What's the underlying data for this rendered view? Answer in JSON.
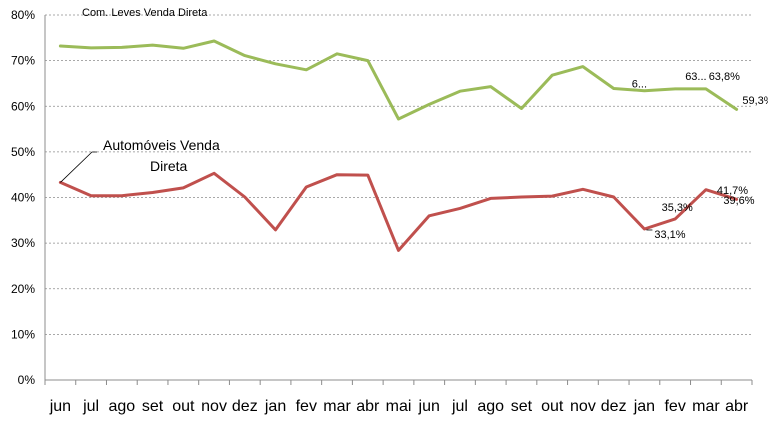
{
  "chart_data": {
    "type": "line",
    "title": "",
    "xlabel": "",
    "ylabel": "",
    "ylim": [
      0,
      80
    ],
    "y_ticks": [
      "0%",
      "10%",
      "20%",
      "30%",
      "40%",
      "50%",
      "60%",
      "70%",
      "80%"
    ],
    "grid": true,
    "categories": [
      "jun",
      "jul",
      "ago",
      "set",
      "out",
      "nov",
      "dez",
      "jan",
      "fev",
      "mar",
      "abr",
      "mai",
      "jun",
      "jul",
      "ago",
      "set",
      "out",
      "nov",
      "dez",
      "jan",
      "fev",
      "mar",
      "abr"
    ],
    "series": [
      {
        "name": "Com. Leves Venda Direta",
        "color": "#9bbb59",
        "values": [
          73.2,
          72.8,
          72.9,
          73.4,
          72.7,
          74.3,
          71.1,
          69.3,
          68.0,
          71.5,
          70.0,
          57.2,
          60.4,
          63.3,
          64.3,
          59.5,
          66.8,
          68.7,
          63.9,
          63.4,
          63.8,
          63.8,
          59.3
        ]
      },
      {
        "name": "Automóveis Venda Direta",
        "color": "#c0504d",
        "values": [
          43.3,
          40.4,
          40.4,
          41.1,
          42.1,
          45.3,
          40.1,
          32.9,
          42.3,
          45.0,
          44.9,
          28.4,
          36.0,
          37.6,
          39.8,
          40.1,
          40.3,
          41.8,
          40.1,
          33.1,
          35.3,
          41.7,
          39.6
        ]
      }
    ],
    "data_labels": [
      {
        "series": 0,
        "index": 19,
        "text": "6..."
      },
      {
        "series": 0,
        "index": 21,
        "text": "63..."
      },
      {
        "series": 0,
        "index": 21,
        "text": "63,8%"
      },
      {
        "series": 0,
        "index": 22,
        "text": "59,3%"
      },
      {
        "series": 1,
        "index": 19,
        "text": "33,1%"
      },
      {
        "series": 1,
        "index": 20,
        "text": "35,3%"
      },
      {
        "series": 1,
        "index": 21,
        "text": "41,7%"
      },
      {
        "series": 1,
        "index": 22,
        "text": "39,6%"
      }
    ]
  }
}
